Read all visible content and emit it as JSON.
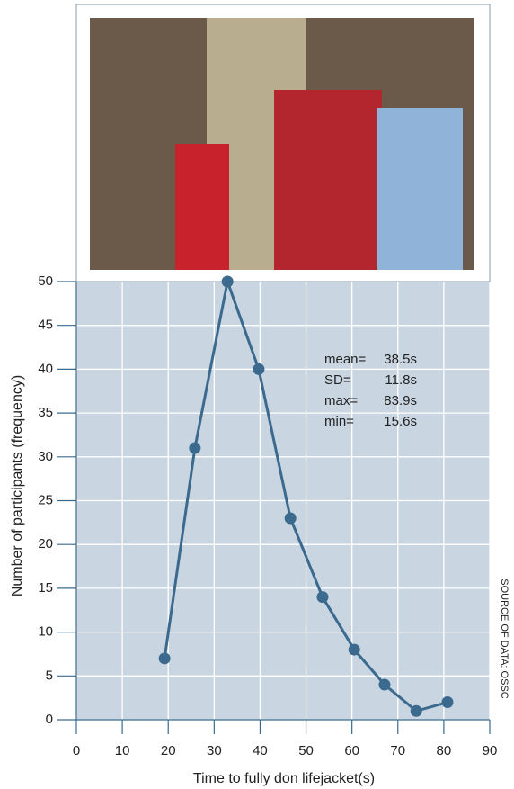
{
  "chart_data": {
    "type": "line",
    "x": [
      19.2,
      25.8,
      32.9,
      39.7,
      46.6,
      53.6,
      60.5,
      67.1,
      74.0,
      80.8
    ],
    "values": [
      7,
      31,
      50,
      40,
      23,
      14,
      8,
      4,
      1,
      2
    ],
    "color": "#3b6a8e",
    "xlim": [
      0,
      90
    ],
    "xticks": [
      0,
      10,
      20,
      30,
      40,
      50,
      60,
      70,
      80,
      90
    ],
    "ylim": [
      0,
      50
    ],
    "yticks": [
      0,
      5,
      10,
      15,
      20,
      25,
      30,
      35,
      40,
      45,
      50
    ],
    "grid": true,
    "x_label": "Time to fully don lifejacket(s)",
    "y_label": "Number of participants (frequency)",
    "annotations": [
      {
        "label": "mean=",
        "value": "38.5s"
      },
      {
        "label": "SD=",
        "value": "11.8s"
      },
      {
        "label": "max=",
        "value": "83.9s"
      },
      {
        "label": "min=",
        "value": "15.6s"
      }
    ],
    "source": "SOURCE OF DATA: OSSC"
  }
}
